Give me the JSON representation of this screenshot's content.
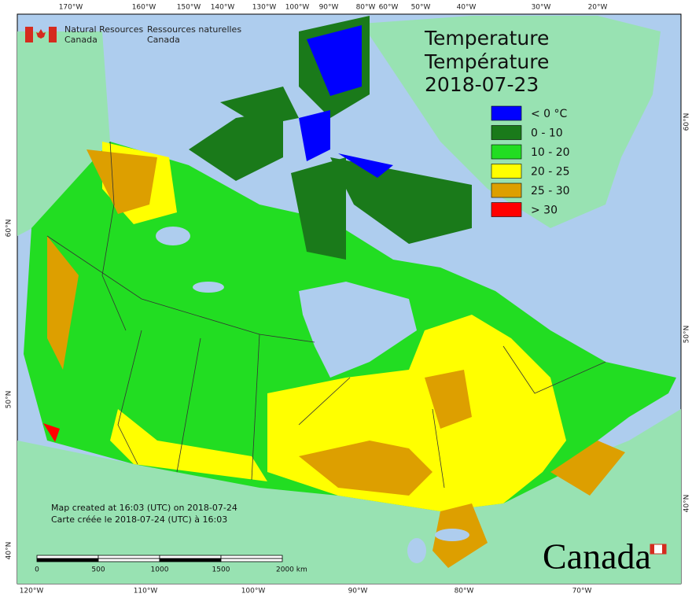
{
  "header": {
    "org_en": [
      "Natural Resources",
      "Canada"
    ],
    "org_fr": [
      "Ressources naturelles",
      "Canada"
    ]
  },
  "title": [
    "Temperature",
    "Température",
    "2018-07-23"
  ],
  "legend": [
    {
      "label": "< 0 °C",
      "color": "#0000ff"
    },
    {
      "label": "0 - 10",
      "color": "#1a7a1a"
    },
    {
      "label": "10 - 20",
      "color": "#22dd22"
    },
    {
      "label": "20 - 25",
      "color": "#ffff00"
    },
    {
      "label": "25 - 30",
      "color": "#dd9f00"
    },
    {
      "label": "> 30",
      "color": "#ff0000"
    }
  ],
  "graticule": {
    "top": [
      "170°W",
      "160°W",
      "150°W",
      "140°W",
      "130°W",
      "100°W",
      "90°W",
      "80°W",
      "60°W",
      "50°W",
      "40°W",
      "30°W",
      "20°W"
    ],
    "bottom": [
      "120°W",
      "110°W",
      "100°W",
      "90°W",
      "80°W",
      "70°W"
    ],
    "left": [
      "60°N",
      "50°N",
      "40°N"
    ],
    "right": [
      "60°N",
      "50°N",
      "40°N"
    ]
  },
  "scale_bar": {
    "labels": [
      "0",
      "500",
      "1000",
      "1500",
      "2000 km"
    ]
  },
  "notes": [
    "Map created at 16:03 (UTC) on 2018-07-24",
    "Carte créée le 2018-07-24 (UTC) à 16:03"
  ],
  "wordmark": "Canada"
}
